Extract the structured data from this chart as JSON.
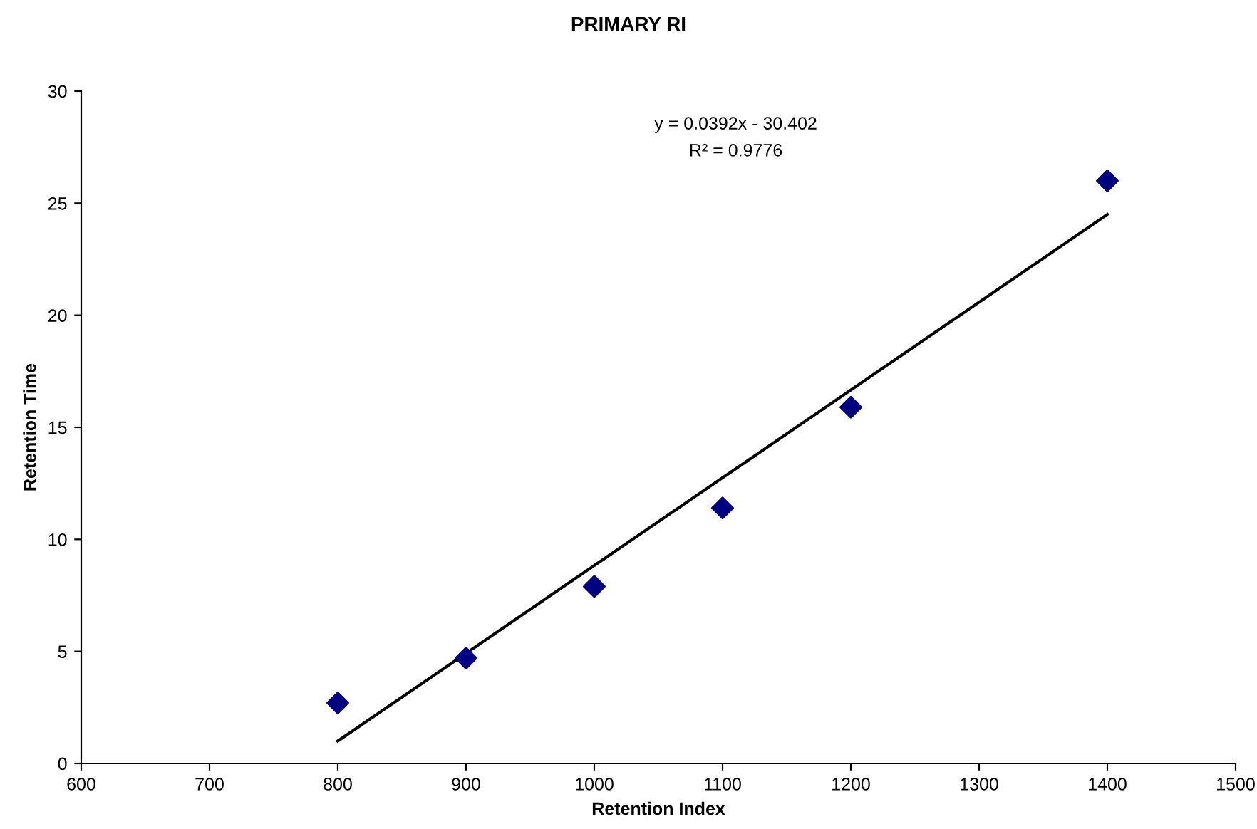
{
  "chart_data": {
    "type": "scatter",
    "title": "PRIMARY RI",
    "xlabel": "Retention Index",
    "ylabel": "Retention Time",
    "annotations": [
      "y = 0.0392x - 30.402",
      "R² = 0.9776"
    ],
    "series": [
      {
        "color": "#000080",
        "marker": "diamond",
        "x": [
          800,
          900,
          1000,
          1100,
          1200,
          1400
        ],
        "values": [
          2.7,
          4.7,
          7.9,
          11.4,
          15.9,
          26.0
        ]
      },
      {
        "type": "line",
        "color": "#000000",
        "marker": "none",
        "line_style": "solid",
        "x": [
          800,
          1400
        ],
        "values": [
          1.0,
          24.5
        ]
      }
    ],
    "xlim": [
      600,
      1500
    ],
    "xticks": [
      600,
      700,
      800,
      900,
      1000,
      1100,
      1200,
      1300,
      1400,
      1500
    ],
    "ylim": [
      0,
      30
    ],
    "yticks": [
      0,
      5,
      10,
      15,
      20,
      25,
      30
    ],
    "grid": false,
    "legend": false
  }
}
